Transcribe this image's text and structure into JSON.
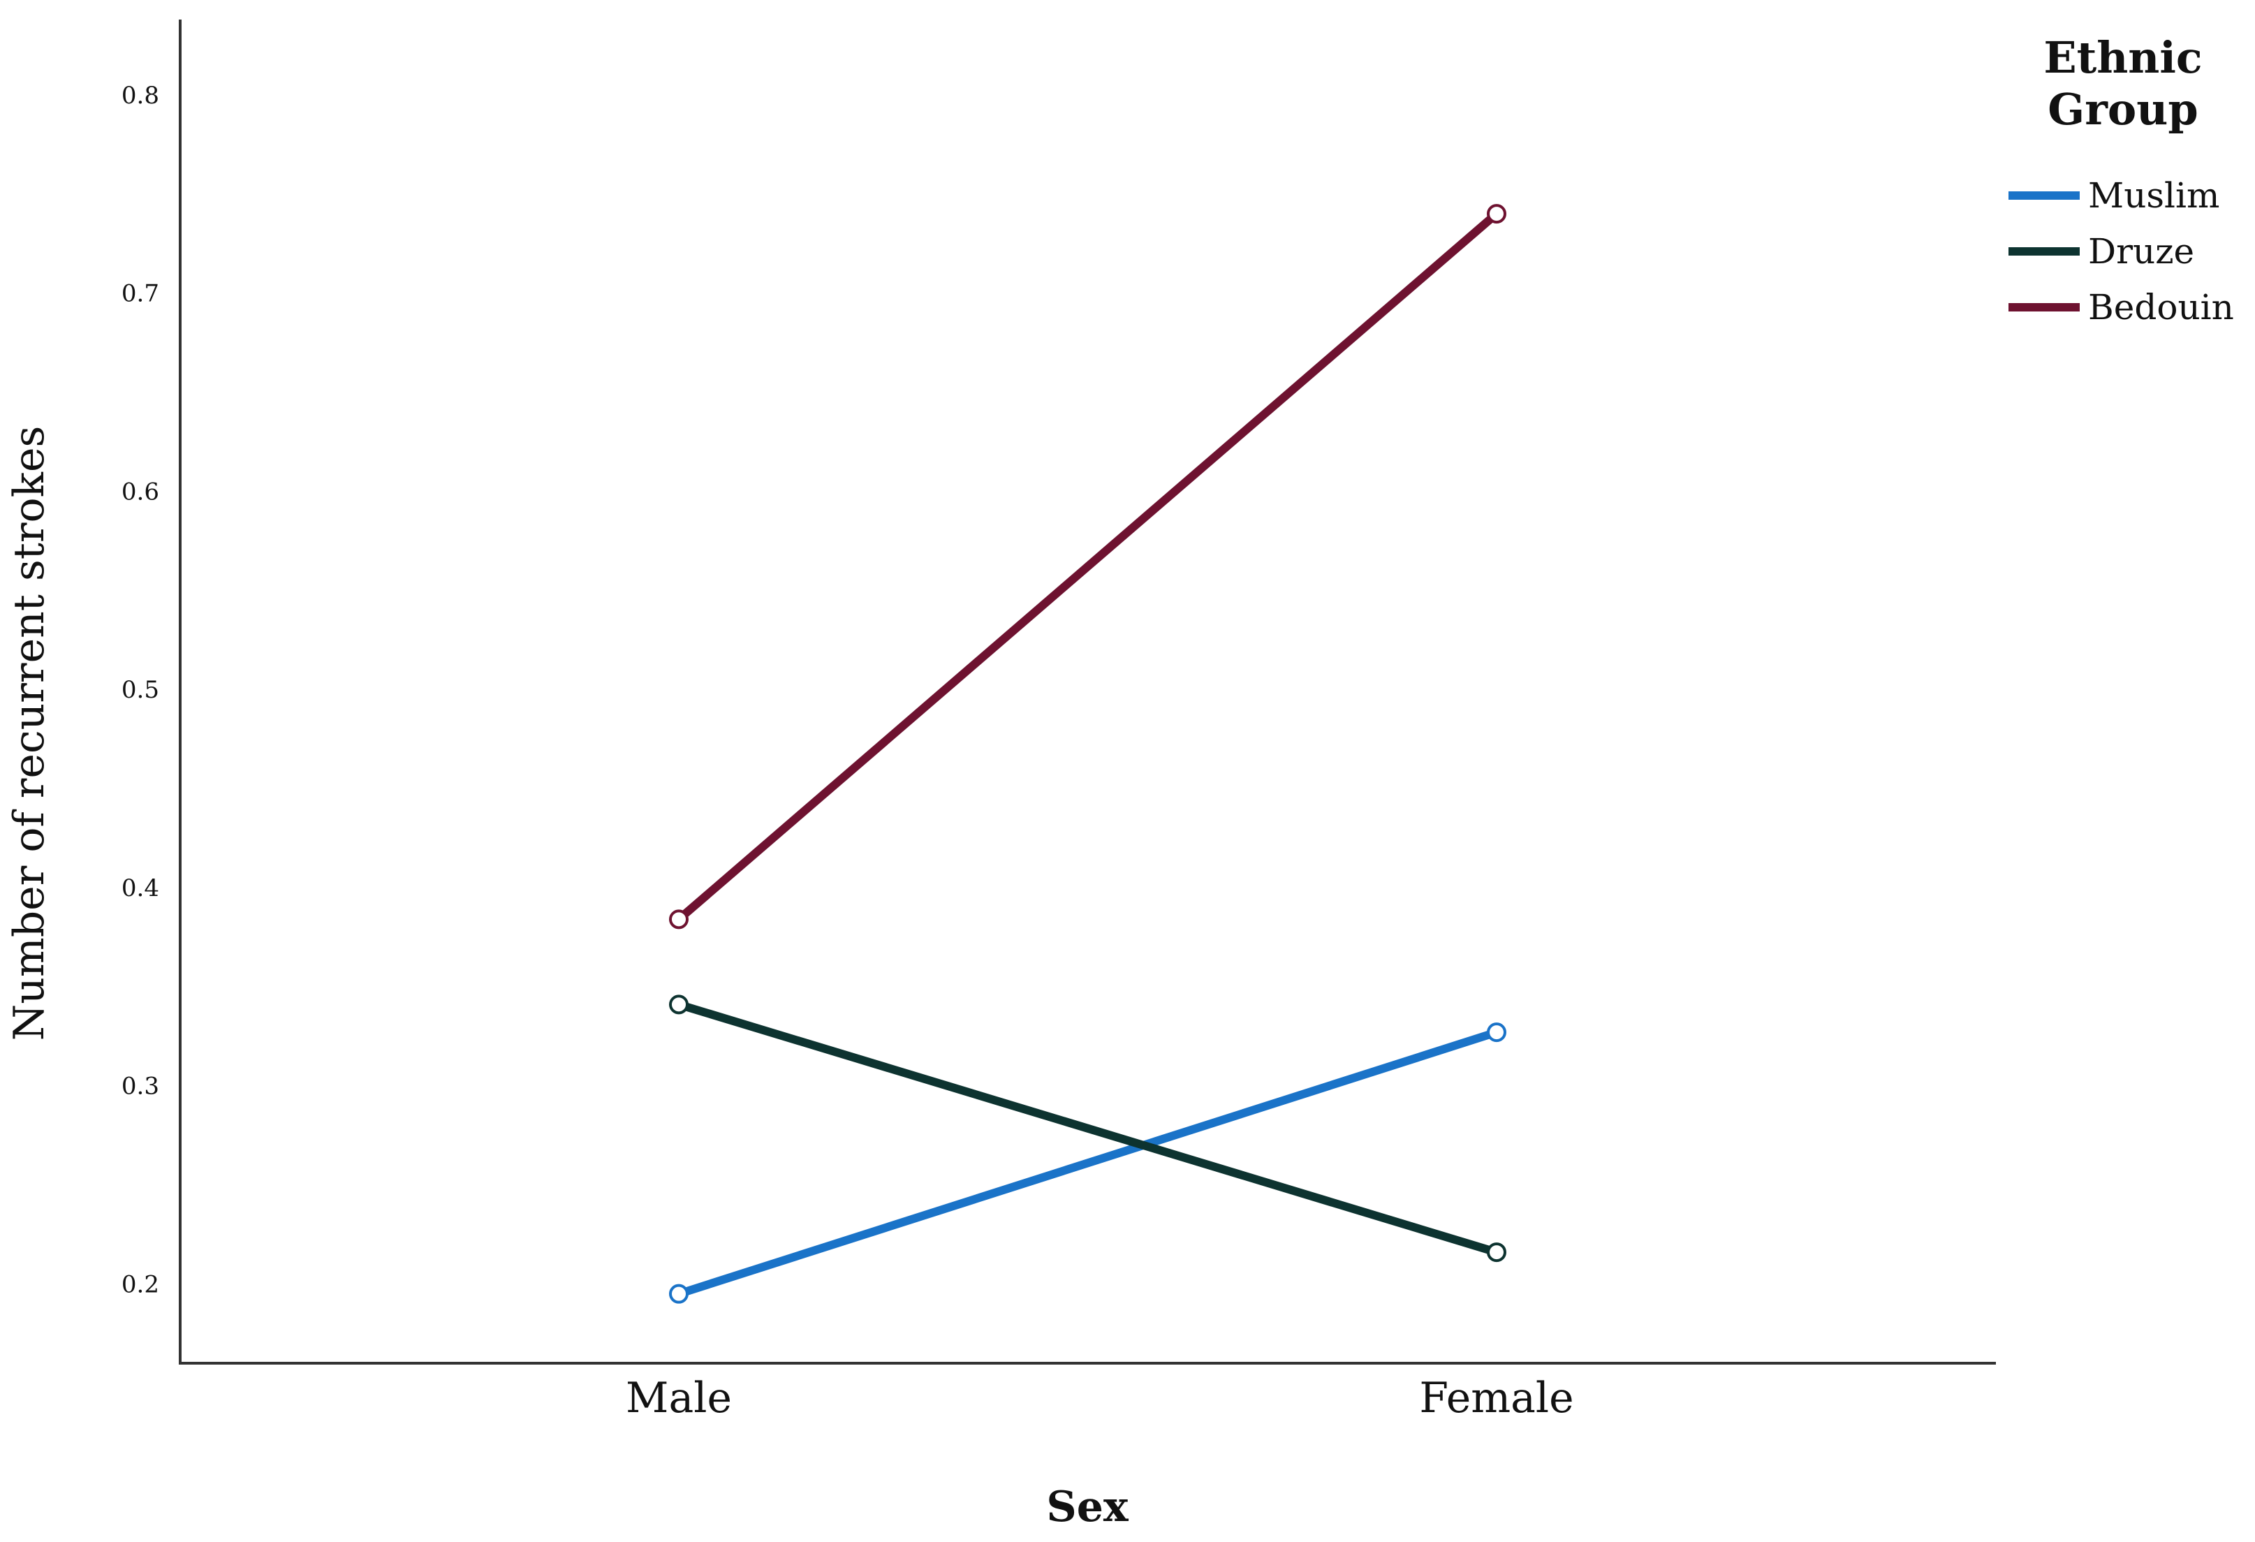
{
  "chart_data": {
    "type": "line",
    "categories": [
      "Male",
      "Female"
    ],
    "series": [
      {
        "name": "Muslim",
        "values": [
          0.195,
          0.327
        ],
        "color": "#1a73c8"
      },
      {
        "name": "Druze",
        "values": [
          0.341,
          0.216
        ],
        "color": "#0d3330"
      },
      {
        "name": "Bedouin",
        "values": [
          0.384,
          0.74
        ],
        "color": "#6e1230"
      }
    ],
    "xlabel": "Sex",
    "ylabel": "Number of recurrent strokes",
    "ylim": [
      0.16,
      0.838
    ],
    "yticks": [
      "0.2",
      "0.3",
      "0.4",
      "0.5",
      "0.6",
      "0.7",
      "0.8"
    ],
    "legend": {
      "title_lines": [
        "Ethnic",
        "Group"
      ],
      "position": "top-right"
    },
    "grid": false
  }
}
